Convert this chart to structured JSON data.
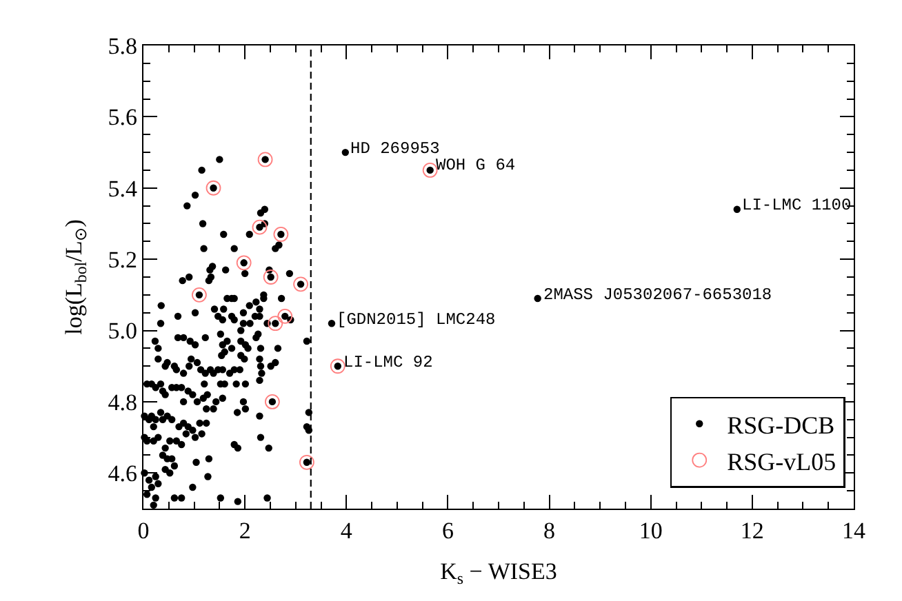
{
  "chart_data": {
    "type": "scatter",
    "xlabel": "K$_{s}$ − WISE3",
    "ylabel": "log(L$_{bol}$/L$_{⊙}$)",
    "xlim": [
      0,
      14
    ],
    "ylim": [
      4.5,
      5.8
    ],
    "xticks": [
      0,
      {
        "value": 0.5,
        "label": null
      },
      {
        "value": 1,
        "label": null
      },
      {
        "value": 1.5,
        "label": null
      },
      2,
      {
        "value": 2.5,
        "label": null
      },
      {
        "value": 3,
        "label": null
      },
      {
        "value": 3.5,
        "label": null
      },
      4,
      {
        "value": 4.5,
        "label": null
      },
      {
        "value": 5,
        "label": null
      },
      {
        "value": 5.5,
        "label": null
      },
      6,
      {
        "value": 6.5,
        "label": null
      },
      {
        "value": 7,
        "label": null
      },
      {
        "value": 7.5,
        "label": null
      },
      8,
      {
        "value": 8.5,
        "label": null
      },
      {
        "value": 9,
        "label": null
      },
      {
        "value": 9.5,
        "label": null
      },
      10,
      {
        "value": 10.5,
        "label": null
      },
      {
        "value": 11,
        "label": null
      },
      {
        "value": 11.5,
        "label": null
      },
      12,
      {
        "value": 12.5,
        "label": null
      },
      {
        "value": 13,
        "label": null
      },
      {
        "value": 13.5,
        "label": null
      },
      14
    ],
    "yticks": [
      {
        "value": 4.55,
        "label": null
      },
      4.6,
      {
        "value": 4.65,
        "label": null
      },
      {
        "value": 4.7,
        "label": null
      },
      {
        "value": 4.75,
        "label": null
      },
      4.8,
      {
        "value": 4.85,
        "label": null
      },
      {
        "value": 4.9,
        "label": null
      },
      {
        "value": 4.95,
        "label": null
      },
      {
        "value": 5.0,
        "label": "5.0"
      },
      {
        "value": 5.05,
        "label": null
      },
      {
        "value": 5.1,
        "label": null
      },
      {
        "value": 5.15,
        "label": null
      },
      5.2,
      {
        "value": 5.25,
        "label": null
      },
      {
        "value": 5.3,
        "label": null
      },
      {
        "value": 5.35,
        "label": null
      },
      5.4,
      {
        "value": 5.45,
        "label": null
      },
      {
        "value": 5.5,
        "label": null
      },
      {
        "value": 5.55,
        "label": null
      },
      5.6,
      {
        "value": 5.65,
        "label": null
      },
      {
        "value": 5.7,
        "label": null
      },
      {
        "value": 5.75,
        "label": null
      },
      5.8
    ],
    "legend": "bottom right",
    "marker": "circle",
    "ref_lines": [
      {
        "axis": "x",
        "value": 3.3,
        "line_style": "dashed",
        "color": "#000000"
      }
    ],
    "annotations": [
      {
        "text": "HD 269953",
        "x": 3.98,
        "y": 5.5
      },
      {
        "text": "WOH G 64",
        "x": 5.65,
        "y": 5.45
      },
      {
        "text": "2MASS J05302067-6653018",
        "x": 7.77,
        "y": 5.09
      },
      {
        "text": "[GDN2015] LMC248",
        "x": 3.71,
        "y": 5.02
      },
      {
        "text": "LI-LMC 92",
        "x": 3.83,
        "y": 4.9
      },
      {
        "text": "LI-LMC 1100",
        "x": 11.7,
        "y": 5.34
      }
    ],
    "series": [
      {
        "name": "RSG-DCB",
        "color": "#000000",
        "x": [
          1.5,
          2.4,
          1.15,
          1.38,
          1.02,
          0.86,
          2.31,
          2.39,
          1.17,
          2.29,
          2.39,
          1.58,
          2.09,
          2.71,
          2.67,
          2.6,
          1.19,
          1.79,
          1.31,
          1.36,
          1.62,
          1.98,
          2.48,
          2.88,
          0.9,
          2.0,
          2.51,
          0.77,
          1.29,
          1.33,
          3.1,
          1.1,
          0.35,
          1.4,
          1.58,
          1.65,
          1.74,
          1.79,
          2.09,
          2.22,
          2.29,
          2.37,
          2.37,
          2.72,
          2.79,
          2.6,
          0.68,
          1.02,
          1.47,
          1.56,
          1.74,
          1.79,
          1.97,
          1.97,
          2.1,
          2.2,
          2.29,
          2.44,
          2.9,
          2.65,
          0.34,
          0.23,
          0.68,
          0.79,
          0.92,
          1.02,
          1.22,
          1.52,
          1.65,
          1.56,
          1.74,
          1.92,
          1.92,
          2.01,
          2.06,
          2.26,
          2.22,
          2.31,
          3.22,
          0.29,
          0.29,
          0.43,
          0.47,
          0.61,
          0.65,
          0.79,
          0.9,
          0.94,
          1.06,
          1.13,
          1.22,
          1.2,
          1.32,
          1.38,
          1.47,
          1.54,
          1.6,
          1.56,
          1.6,
          1.52,
          1.7,
          1.79,
          1.83,
          1.92,
          1.99,
          1.9,
          2.01,
          2.29,
          2.31,
          2.33,
          2.51,
          2.6,
          2.29,
          3.22,
          3.26,
          0.07,
          0.16,
          0.24,
          0.34,
          0.38,
          0.43,
          0.56,
          0.65,
          0.75,
          0.79,
          0.88,
          0.97,
          1.06,
          1.18,
          1.26,
          1.24,
          1.38,
          1.43,
          1.56,
          1.85,
          1.97,
          2.01,
          2.29,
          2.54,
          2.47,
          2.31,
          0.02,
          0.11,
          0.16,
          0.2,
          0.24,
          0.34,
          0.38,
          0.47,
          0.56,
          0.7,
          0.79,
          0.88,
          0.97,
          1.02,
          1.11,
          1.24,
          1.15,
          0.02,
          0.07,
          0.2,
          0.29,
          0.43,
          0.52,
          0.65,
          0.75,
          0.84,
          0.38,
          0.47,
          0.56,
          0.61,
          0.52,
          0.43,
          0.02,
          0.11,
          0.24,
          0.29,
          0.16,
          0.07,
          0.24,
          0.2,
          1.04,
          1.29,
          1.79,
          1.86,
          1.27,
          0.97,
          1.52,
          1.86,
          2.44,
          0.61,
          0.75,
          3.26,
          3.22,
          3.98,
          5.65,
          7.77,
          3.71,
          3.83,
          11.7
        ],
        "values": [
          5.48,
          5.48,
          5.45,
          5.4,
          5.38,
          5.35,
          5.33,
          5.34,
          5.3,
          5.29,
          5.3,
          5.27,
          5.27,
          5.27,
          5.24,
          5.23,
          5.23,
          5.23,
          5.17,
          5.18,
          5.17,
          5.19,
          5.17,
          5.16,
          5.15,
          5.16,
          5.15,
          5.14,
          5.14,
          5.15,
          5.13,
          5.1,
          5.07,
          5.06,
          5.06,
          5.09,
          5.09,
          5.09,
          5.07,
          5.08,
          5.06,
          5.1,
          5.09,
          5.09,
          5.04,
          5.02,
          5.04,
          5.05,
          5.04,
          5.03,
          5.04,
          5.03,
          5.05,
          5.02,
          5.02,
          5.04,
          5.04,
          5.02,
          5.03,
          4.95,
          5.02,
          4.97,
          4.98,
          4.98,
          4.97,
          4.96,
          4.98,
          4.99,
          4.97,
          4.96,
          4.95,
          5.0,
          4.97,
          4.96,
          4.95,
          4.99,
          4.98,
          4.95,
          4.97,
          4.95,
          4.92,
          4.9,
          4.91,
          4.9,
          4.89,
          4.88,
          4.9,
          4.92,
          4.91,
          4.89,
          4.88,
          4.85,
          4.89,
          4.88,
          4.89,
          4.93,
          4.94,
          4.89,
          4.85,
          4.85,
          4.88,
          4.89,
          4.85,
          4.93,
          4.92,
          4.89,
          4.85,
          4.92,
          4.9,
          4.88,
          4.9,
          4.91,
          4.86,
          4.73,
          4.77,
          4.85,
          4.85,
          4.84,
          4.85,
          4.83,
          4.82,
          4.84,
          4.84,
          4.84,
          4.8,
          4.83,
          4.82,
          4.8,
          4.81,
          4.82,
          4.78,
          4.78,
          4.8,
          4.81,
          4.77,
          4.8,
          4.78,
          4.76,
          4.8,
          4.67,
          4.7,
          4.76,
          4.75,
          4.76,
          4.73,
          4.75,
          4.77,
          4.75,
          4.76,
          4.75,
          4.73,
          4.74,
          4.73,
          4.72,
          4.7,
          4.74,
          4.74,
          4.71,
          4.7,
          4.69,
          4.69,
          4.7,
          4.67,
          4.69,
          4.69,
          4.68,
          4.71,
          4.65,
          4.64,
          4.64,
          4.62,
          4.6,
          4.61,
          4.6,
          4.58,
          4.59,
          4.57,
          4.56,
          4.54,
          4.53,
          4.51,
          4.63,
          4.64,
          4.68,
          4.67,
          4.59,
          4.56,
          4.53,
          4.52,
          4.53,
          4.53,
          4.53,
          4.72,
          4.63,
          5.5,
          5.45,
          5.09,
          5.02,
          4.9,
          5.34
        ]
      },
      {
        "name": "RSG-vL05",
        "color": "#ff7f7f",
        "marker": "circle-open",
        "x": [
          2.4,
          1.38,
          2.29,
          2.71,
          1.98,
          2.51,
          3.1,
          1.1,
          2.79,
          2.6,
          2.54,
          3.22,
          5.65,
          3.83
        ],
        "values": [
          5.48,
          5.4,
          5.29,
          5.27,
          5.19,
          5.15,
          5.13,
          5.1,
          5.04,
          5.02,
          4.8,
          4.63,
          5.45,
          4.9
        ]
      }
    ]
  }
}
